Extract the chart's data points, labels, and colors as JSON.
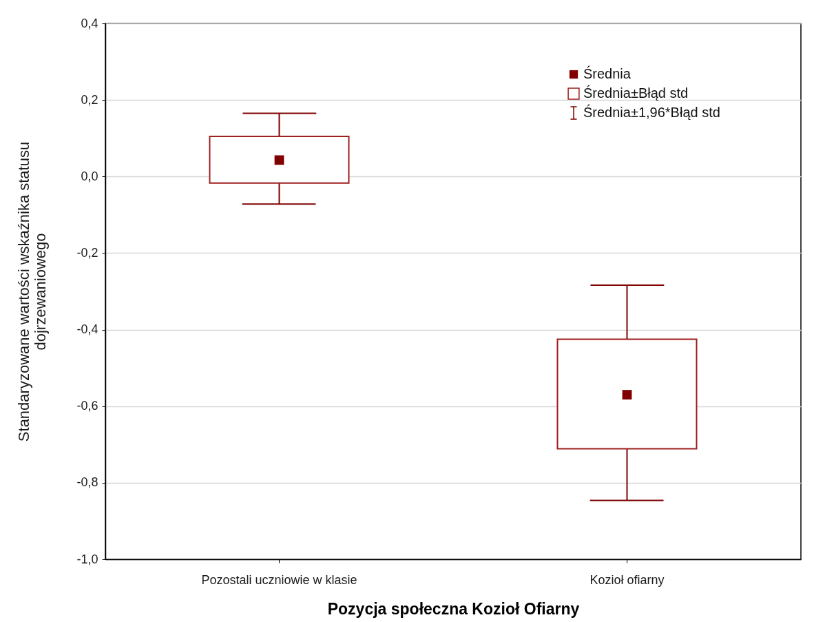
{
  "chart_data": {
    "type": "scatter",
    "xlabel": "Pozycja społeczna Kozioł Ofiarny",
    "ylabel": "Standaryzowane wartości wskaźnika statusu\ndojrzewaniowego",
    "categories": [
      "Pozostali uczniowie w klasie",
      "Kozioł ofiarny"
    ],
    "ylim": [
      -1.0,
      0.4
    ],
    "yticks": [
      {
        "value": -1.0,
        "label": "-1,0"
      },
      {
        "value": -0.8,
        "label": "-0,8"
      },
      {
        "value": -0.6,
        "label": "-0,6"
      },
      {
        "value": -0.4,
        "label": "-0,4"
      },
      {
        "value": -0.2,
        "label": "-0,2"
      },
      {
        "value": 0.0,
        "label": "0,0"
      },
      {
        "value": 0.2,
        "label": "0,2"
      },
      {
        "value": 0.4,
        "label": "0,4"
      }
    ],
    "grid": "y",
    "legend": "top right",
    "annotations": [
      "Średnia±1,96*Błąd std"
    ],
    "series": [
      {
        "name": "Średnia",
        "color": "#800000",
        "marker": "square",
        "values": [
          0.043,
          -0.57
        ],
        "errors": [
          [
            -0.072,
            0.165
          ],
          [
            -0.846,
            -0.284
          ]
        ]
      },
      {
        "name": "Średnia±Błąd std",
        "type": "bar",
        "color": "#9e1d1d",
        "base": [
          -0.017,
          -0.711
        ],
        "values": [
          0.122,
          0.286
        ]
      }
    ]
  }
}
